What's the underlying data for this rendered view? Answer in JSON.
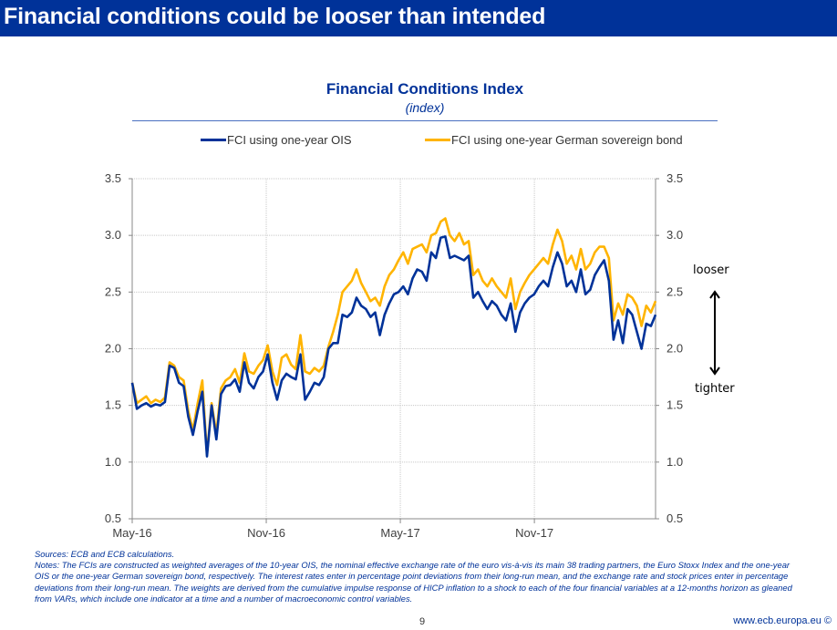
{
  "slide": {
    "title": "Financial conditions could be looser than intended",
    "page_number": "9",
    "footer_site": "www.ecb.europa.eu ©",
    "sources": "Sources: ECB and ECB calculations.",
    "notes": "Notes: The FCIs are constructed as weighted averages of the 10-year OIS, the nominal effective exchange rate of the euro vis-à-vis its main 38 trading partners, the Euro Stoxx Index and the one-year OIS or the one-year German sovereign bond, respectively. The interest rates enter in percentage point deviations from their long-run mean, and the exchange rate and stock prices enter in percentage deviations from their long-run mean. The weights are derived from the cumulative impulse response of HICP inflation to a shock to each of the four financial variables at a 12-months horizon as gleaned from VARs, which include one indicator at a time and a number of macroeconomic control variables.",
    "annotations": {
      "up_label": "looser",
      "down_label": "tighter"
    },
    "colors": {
      "title_bar": "#003299",
      "ois_series": "#003299",
      "bund_series": "#FFB400"
    }
  },
  "chart_data": {
    "type": "line",
    "title": "Financial Conditions Index",
    "subtitle": "(index)",
    "xlabel": "",
    "ylabel": "",
    "ylim": [
      0.5,
      3.5
    ],
    "yticks": [
      "0.5",
      "1.0",
      "1.5",
      "2.0",
      "2.5",
      "3.0",
      "3.5"
    ],
    "ytick_values": [
      0.5,
      1.0,
      1.5,
      2.0,
      2.5,
      3.0,
      3.5
    ],
    "xticks": [
      "May-16",
      "Nov-16",
      "May-17",
      "Nov-17"
    ],
    "xtick_positions_weeks": [
      0,
      26,
      52,
      78
    ],
    "x_unit": "weeks since start of May-2016",
    "xlim_weeks": [
      0,
      101.5
    ],
    "grid": true,
    "legend_position": "top",
    "secondary_y_axis_mirrors_primary": true,
    "series": [
      {
        "name": "FCI using one-year OIS",
        "color": "#003299",
        "values": [
          1.7,
          1.47,
          1.5,
          1.52,
          1.49,
          1.51,
          1.5,
          1.53,
          1.85,
          1.83,
          1.7,
          1.67,
          1.4,
          1.24,
          1.45,
          1.62,
          1.05,
          1.5,
          1.2,
          1.6,
          1.67,
          1.68,
          1.73,
          1.62,
          1.88,
          1.7,
          1.65,
          1.75,
          1.8,
          1.95,
          1.7,
          1.55,
          1.72,
          1.78,
          1.75,
          1.73,
          1.95,
          1.55,
          1.62,
          1.7,
          1.68,
          1.75,
          2.0,
          2.05,
          2.05,
          2.3,
          2.28,
          2.32,
          2.45,
          2.38,
          2.35,
          2.28,
          2.32,
          2.12,
          2.3,
          2.4,
          2.48,
          2.5,
          2.55,
          2.48,
          2.62,
          2.7,
          2.68,
          2.6,
          2.85,
          2.8,
          2.98,
          2.99,
          2.8,
          2.82,
          2.8,
          2.78,
          2.82,
          2.45,
          2.5,
          2.42,
          2.35,
          2.42,
          2.38,
          2.3,
          2.25,
          2.4,
          2.15,
          2.32,
          2.4,
          2.45,
          2.48,
          2.55,
          2.6,
          2.55,
          2.72,
          2.85,
          2.75,
          2.55,
          2.6,
          2.5,
          2.7,
          2.48,
          2.52,
          2.65,
          2.72,
          2.78
        ],
        "values_tail": [
          2.6,
          2.08,
          2.25,
          2.05,
          2.35,
          2.3,
          2.15,
          2.0,
          2.22,
          2.2,
          2.3
        ]
      },
      {
        "name": "FCI using one-year German sovereign bond",
        "color": "#FFB400",
        "values": [
          1.7,
          1.52,
          1.55,
          1.58,
          1.52,
          1.55,
          1.53,
          1.57,
          1.88,
          1.85,
          1.75,
          1.72,
          1.45,
          1.28,
          1.52,
          1.72,
          1.07,
          1.52,
          1.25,
          1.65,
          1.72,
          1.75,
          1.82,
          1.7,
          1.96,
          1.8,
          1.78,
          1.85,
          1.9,
          2.03,
          1.8,
          1.68,
          1.92,
          1.95,
          1.86,
          1.82,
          2.12,
          1.8,
          1.78,
          1.83,
          1.8,
          1.85,
          2.02,
          2.15,
          2.3,
          2.5,
          2.55,
          2.6,
          2.7,
          2.58,
          2.5,
          2.42,
          2.45,
          2.38,
          2.55,
          2.65,
          2.7,
          2.78,
          2.85,
          2.75,
          2.88,
          2.9,
          2.92,
          2.85,
          3.0,
          3.02,
          3.12,
          3.15,
          3.0,
          2.95,
          3.02,
          2.92,
          2.95,
          2.65,
          2.7,
          2.6,
          2.55,
          2.62,
          2.55,
          2.5,
          2.45,
          2.62,
          2.35,
          2.5,
          2.58,
          2.65,
          2.7,
          2.75,
          2.8,
          2.75,
          2.92,
          3.05,
          2.95,
          2.75,
          2.82,
          2.7,
          2.88,
          2.7,
          2.75,
          2.85,
          2.9,
          2.9
        ],
        "values_tail": [
          2.8,
          2.25,
          2.4,
          2.3,
          2.48,
          2.45,
          2.38,
          2.2,
          2.38,
          2.32,
          2.42
        ]
      }
    ]
  }
}
